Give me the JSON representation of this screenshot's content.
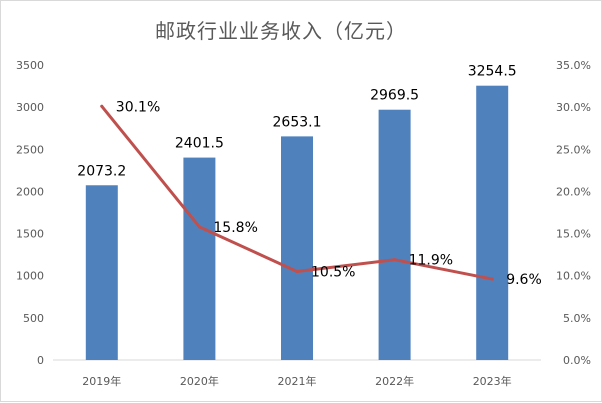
{
  "chart_data": {
    "type": "bar",
    "title": "邮政行业业务收入（亿元）",
    "categories": [
      "2019年",
      "2020年",
      "2021年",
      "2022年",
      "2023年"
    ],
    "series": [
      {
        "type": "bar",
        "axis": "left",
        "color": "#4f81bd",
        "values": [
          2073.2,
          2401.5,
          2653.1,
          2969.5,
          3254.5
        ],
        "labels": [
          "2073.2",
          "2401.5",
          "2653.1",
          "2969.5",
          "3254.5"
        ]
      },
      {
        "type": "line",
        "axis": "right",
        "color": "#c0504d",
        "values": [
          30.1,
          15.8,
          10.5,
          11.9,
          9.6
        ],
        "labels": [
          "30.1%",
          "15.8%",
          "10.5%",
          "11.9%",
          "9.6%"
        ]
      }
    ],
    "y_left": {
      "min": 0,
      "max": 3500,
      "ticks": [
        "0",
        "500",
        "1000",
        "1500",
        "2000",
        "2500",
        "3000",
        "3500"
      ]
    },
    "y_right": {
      "min": 0,
      "max": 35,
      "ticks": [
        "0.0%",
        "5.0%",
        "10.0%",
        "15.0%",
        "20.0%",
        "25.0%",
        "30.0%",
        "35.0%"
      ]
    },
    "grid": false,
    "legend": "none"
  }
}
